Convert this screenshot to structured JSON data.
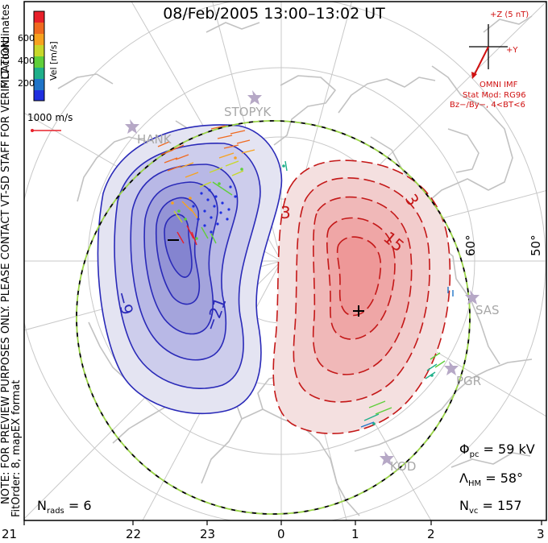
{
  "title": "08/Feb/2005 13:00–13:02 UT",
  "colorbar": {
    "ticks": [
      "600",
      "400",
      "200"
    ],
    "label": "Vel [m/s]",
    "colors": [
      "#e8202a",
      "#f06a20",
      "#f7a21f",
      "#c8d82a",
      "#5fcf3a",
      "#1fb08a",
      "#1f74c8",
      "#1f2fe0"
    ]
  },
  "reference_vector": {
    "label": "1000 m/s"
  },
  "side_notes": {
    "coordinates": "MLT coordinates",
    "preview": "NOTE: FOR PREVIEW PURPOSES ONLY. PLEASE CONTACT VT-SD STAFF FOR VERIFICATION.",
    "fit": "FitOrder: 8, mapEX format"
  },
  "imf": {
    "axis_z": "+Z (5 nT)",
    "axis_y": "+Y",
    "source": "OMNI IMF",
    "model": "Stat Mod: RG96",
    "bin": "Bz−/By−, 4<BT<6"
  },
  "latitude_labels": [
    "60°",
    "50°"
  ],
  "sites": [
    "HANK",
    "STOPYK",
    "SAS",
    "PGR",
    "KOD"
  ],
  "contour_labels": {
    "negative": [
      "−9",
      "−21"
    ],
    "positive": [
      "3",
      "3",
      "15"
    ],
    "min_marker": "−",
    "max_marker": "+"
  },
  "stats": {
    "phi_pc": "59 kV",
    "lambda_hm": "58°",
    "n_vc": "157",
    "n_rads": "6"
  },
  "mlt_axis": [
    "21",
    "22",
    "23",
    "0",
    "1",
    "2",
    "3"
  ],
  "colors": {
    "negative_cell": "#3a3acc",
    "positive_cell": "#d41c1c",
    "hmb_dash": "#9ad447",
    "coastline": "#c2c2c2"
  }
}
